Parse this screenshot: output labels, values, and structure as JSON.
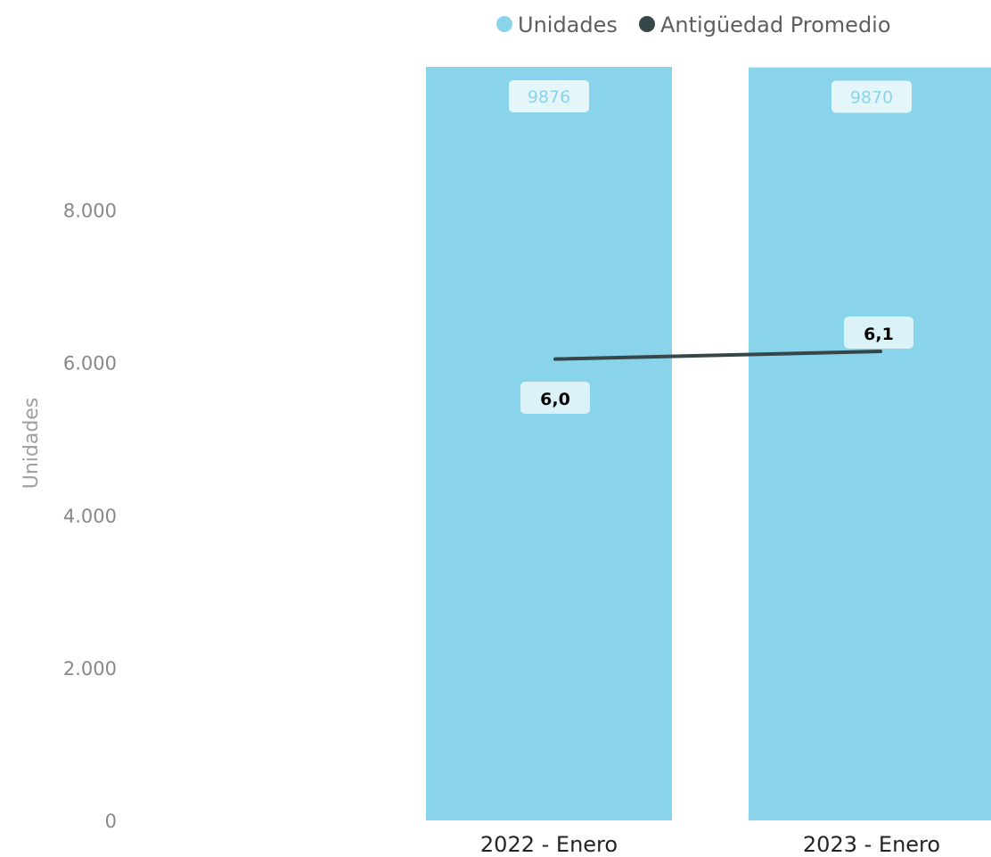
{
  "legend": {
    "items": [
      {
        "label": "Unidades",
        "color": "#8AD4EB"
      },
      {
        "label": "Antigüedad Promedio",
        "color": "#374649"
      }
    ]
  },
  "chart_data": {
    "type": "bar",
    "categories": [
      "2022 - Enero",
      "2023 - Enero"
    ],
    "series": [
      {
        "name": "Unidades",
        "type": "bar",
        "values": [
          9876,
          9870
        ],
        "labels": [
          "9876",
          "9870"
        ],
        "color": "#8AD4EB"
      },
      {
        "name": "Antigüedad Promedio",
        "type": "line",
        "values": [
          6.0,
          6.1
        ],
        "labels": [
          "6,0",
          "6,1"
        ],
        "color": "#374649"
      }
    ],
    "ylabel": "Unidades",
    "ylim": [
      0,
      9876
    ],
    "yticks": [
      0,
      2000,
      4000,
      6000,
      8000
    ],
    "ytick_labels": [
      "0",
      "2.000",
      "4.000",
      "6.000",
      "8.000"
    ],
    "y2lim": [
      0,
      9.8
    ],
    "legend_position": "top-right",
    "grid": false
  }
}
